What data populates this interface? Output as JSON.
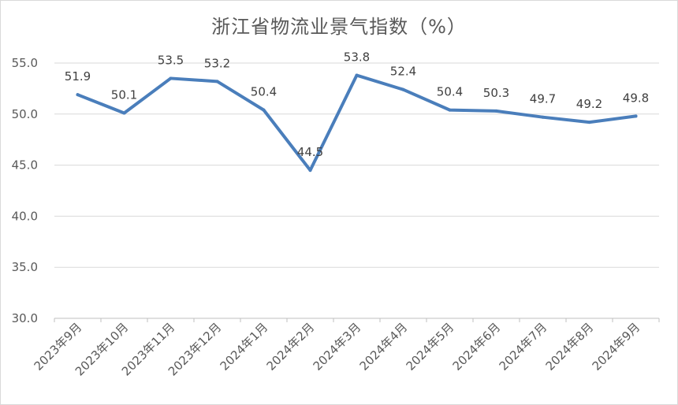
{
  "chart_data": {
    "type": "line",
    "title": "浙江省物流业景气指数（%）",
    "xlabel": "",
    "ylabel": "",
    "categories": [
      "2023年9月",
      "2023年10月",
      "2023年11月",
      "2023年12月",
      "2024年1月",
      "2024年2月",
      "2024年3月",
      "2024年4月",
      "2024年5月",
      "2024年6月",
      "2024年7月",
      "2024年8月",
      "2024年9月"
    ],
    "series": [
      {
        "values": [
          51.9,
          50.1,
          53.5,
          53.2,
          50.4,
          44.5,
          53.8,
          52.4,
          50.4,
          50.3,
          49.7,
          49.2,
          49.8
        ]
      }
    ],
    "data_labels": [
      "51.9",
      "50.1",
      "53.5",
      "53.2",
      "50.4",
      "44.5",
      "53.8",
      "52.4",
      "50.4",
      "50.3",
      "49.7",
      "49.2",
      "49.8"
    ],
    "y_ticks": [
      "30.0",
      "35.0",
      "40.0",
      "45.0",
      "50.0",
      "55.0"
    ],
    "ylim": [
      30,
      55
    ],
    "grid": true,
    "legend": "none",
    "colors": {
      "line": "#4a7ebb",
      "grid": "#d9d9d9",
      "axis": "#bfbfbf",
      "text": "#595959"
    }
  }
}
